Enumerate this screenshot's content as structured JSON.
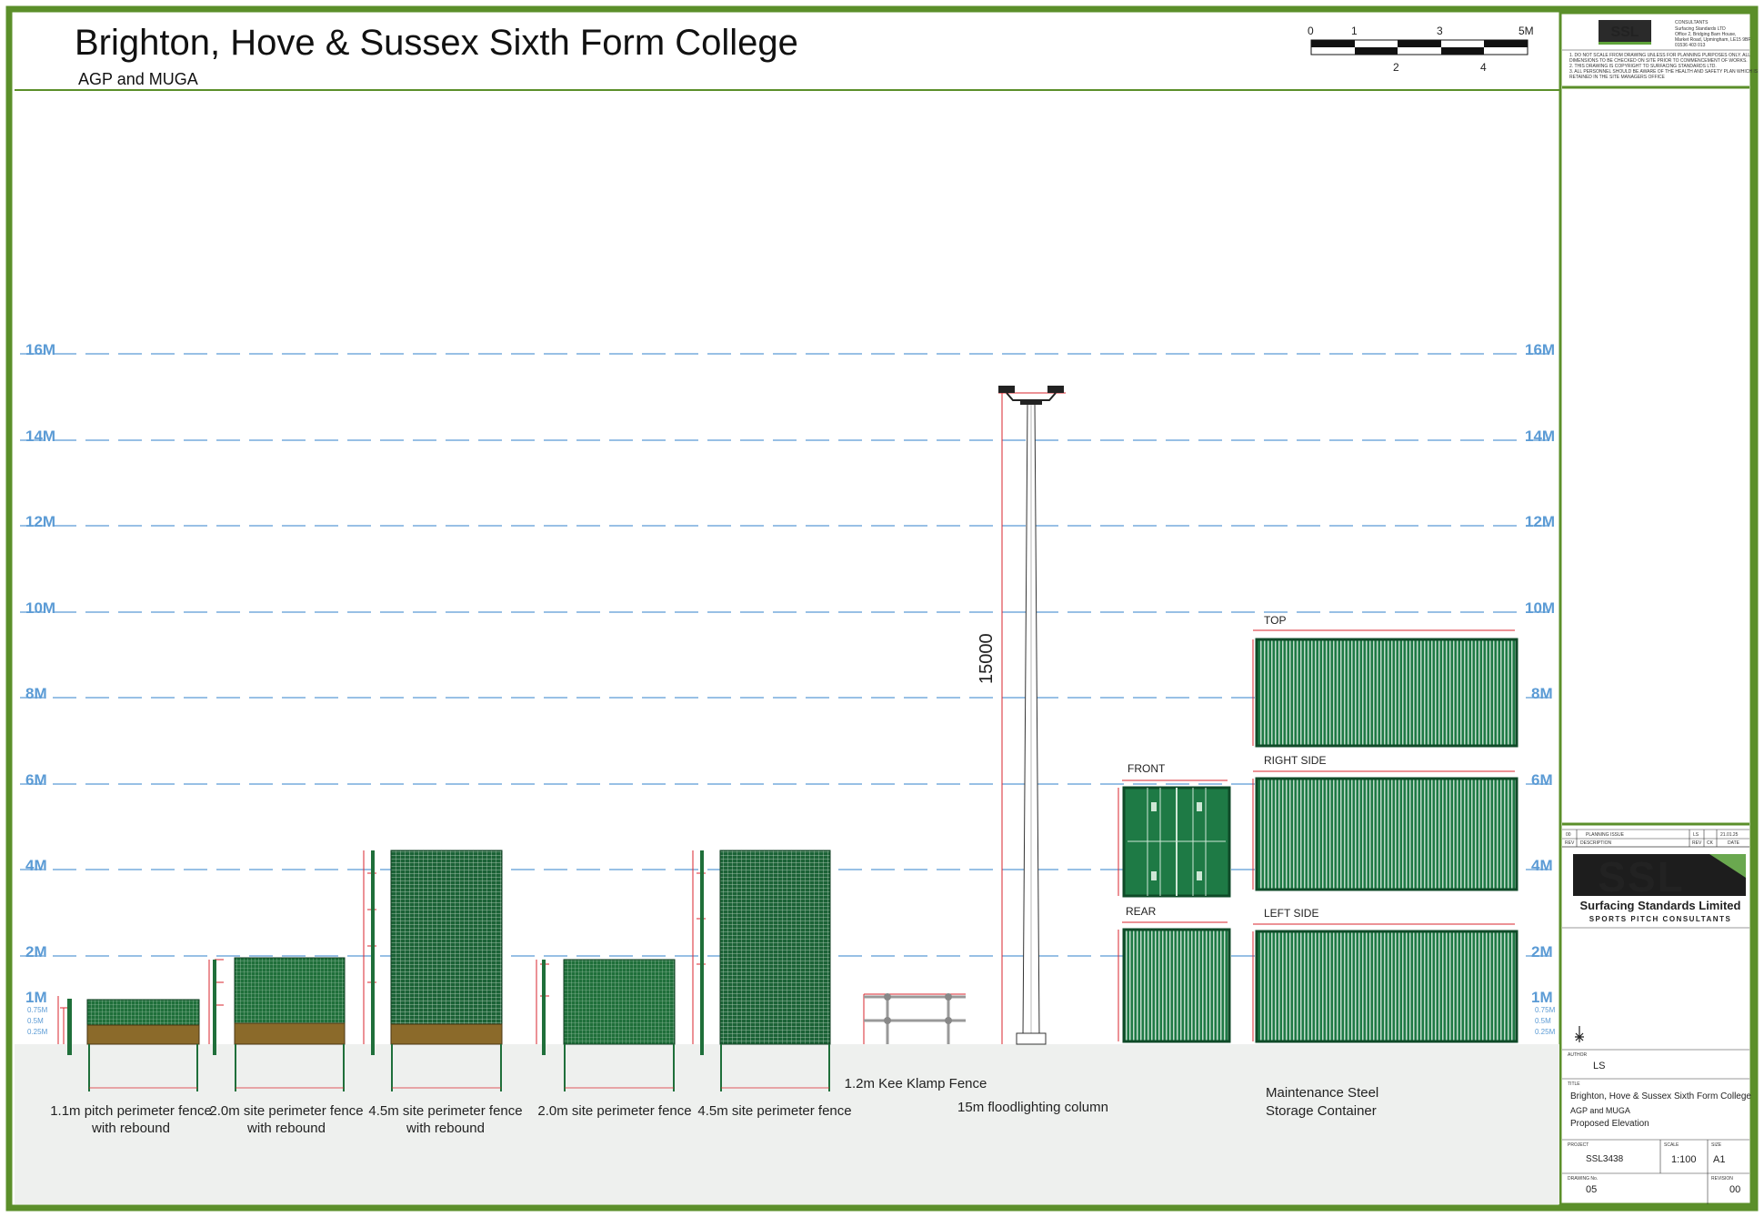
{
  "header": {
    "title": "Brighton, Hove & Sussex Sixth Form College",
    "subtitle": "AGP and MUGA"
  },
  "scale_bar": {
    "top_labels": [
      "0",
      "1",
      "3",
      "5M"
    ],
    "bottom_labels": [
      "2",
      "4"
    ]
  },
  "height_scale": {
    "left_labels": [
      "16M",
      "14M",
      "12M",
      "10M",
      "8M",
      "6M",
      "4M",
      "2M",
      "1M"
    ],
    "right_labels": [
      "16M",
      "14M",
      "12M",
      "10M",
      "8M",
      "6M",
      "4M",
      "2M",
      "1M"
    ],
    "small_labels": [
      "0.75M",
      "0.5M",
      "0.25M"
    ]
  },
  "elevations": [
    {
      "id": "fence-1-1m",
      "caption_line1": "1.1m pitch perimeter fence",
      "caption_line2": "with rebound"
    },
    {
      "id": "fence-2-0m-rebound",
      "caption_line1": "2.0m site perimeter fence",
      "caption_line2": "with rebound"
    },
    {
      "id": "fence-4-5m-rebound",
      "caption_line1": "4.5m site perimeter fence",
      "caption_line2": "with rebound"
    },
    {
      "id": "fence-2-0m",
      "caption_line1": "2.0m site perimeter fence",
      "caption_line2": ""
    },
    {
      "id": "fence-4-5m",
      "caption_line1": "4.5m site perimeter fence",
      "caption_line2": ""
    },
    {
      "id": "kee-klamp",
      "caption_line1": "1.2m Kee Klamp Fence",
      "caption_line2": ""
    },
    {
      "id": "floodlight",
      "caption_line1": "15m floodlighting column",
      "caption_line2": ""
    },
    {
      "id": "container",
      "caption_line1": "Maintenance Steel",
      "caption_line2": "Storage Container"
    }
  ],
  "floodlight_dimension": "15000",
  "container_views": {
    "top": "TOP",
    "right_side": "RIGHT SIDE",
    "left_side": "LEFT SIDE",
    "front": "FRONT",
    "rear": "REAR"
  },
  "title_block": {
    "notes": [
      "1.   DO NOT SCALE FROM DRAWING UNLESS FOR PLANNING PURPOSES ONLY. ALL",
      "      DIMENSIONS TO BE CHECKED ON SITE PRIOR TO COMMENCEMENT OF WORKS.",
      "2.   THIS DRAWING IS COPYRIGHT TO SURFACING STANDARDS LTD.",
      "3.   ALL PERSONNEL SHOULD BE AWARE OF THE HEALTH AND SAFETY PLAN WHICH IS",
      "      RETAINED IN THE SITE MANAGERS OFFICE"
    ],
    "consultants_heading": "CONSULTANTS",
    "consultants_lines": [
      "Surfacing Standards LTD",
      "Office 2, Bridging Barn House,",
      "Market Road, Upmingham, LE15 9BF",
      "01536 403 013"
    ],
    "revision": {
      "rev": "00",
      "description": "PLANNING ISSUE",
      "by": "LS",
      "date": "21.01.25"
    },
    "revision_headers": [
      "REV",
      "DESCRIPTION",
      "REV",
      "CK",
      "DATE"
    ],
    "logo_text": "SSL",
    "company_name": "Surfacing Standards Limited",
    "company_tagline": "SPORTS PITCH CONSULTANTS",
    "author_label": "AUTHOR",
    "author": "LS",
    "title_label": "TITLE",
    "title_line1": "Brighton, Hove & Sussex Sixth Form College",
    "title_line2": "AGP and MUGA",
    "title_line3": "Proposed Elevation",
    "project_label": "PROJECT",
    "project": "SSL3438",
    "scale_label": "SCALE",
    "scale": "1:100",
    "size_label": "SIZE",
    "size": "A1",
    "drawing_no_label": "DRAWING No.",
    "drawing_no": "05",
    "revision_label": "REVISION",
    "revision_no": "00"
  },
  "colors": {
    "border": "#5b8f2a",
    "fence_green": "#1f6f3a",
    "container_green": "#1e7a45",
    "rebound_wood": "#8b6a2a",
    "grid_blue": "#5b9bd5",
    "dimension_red": "#d9262c",
    "ground_grey": "#eef0ee"
  }
}
